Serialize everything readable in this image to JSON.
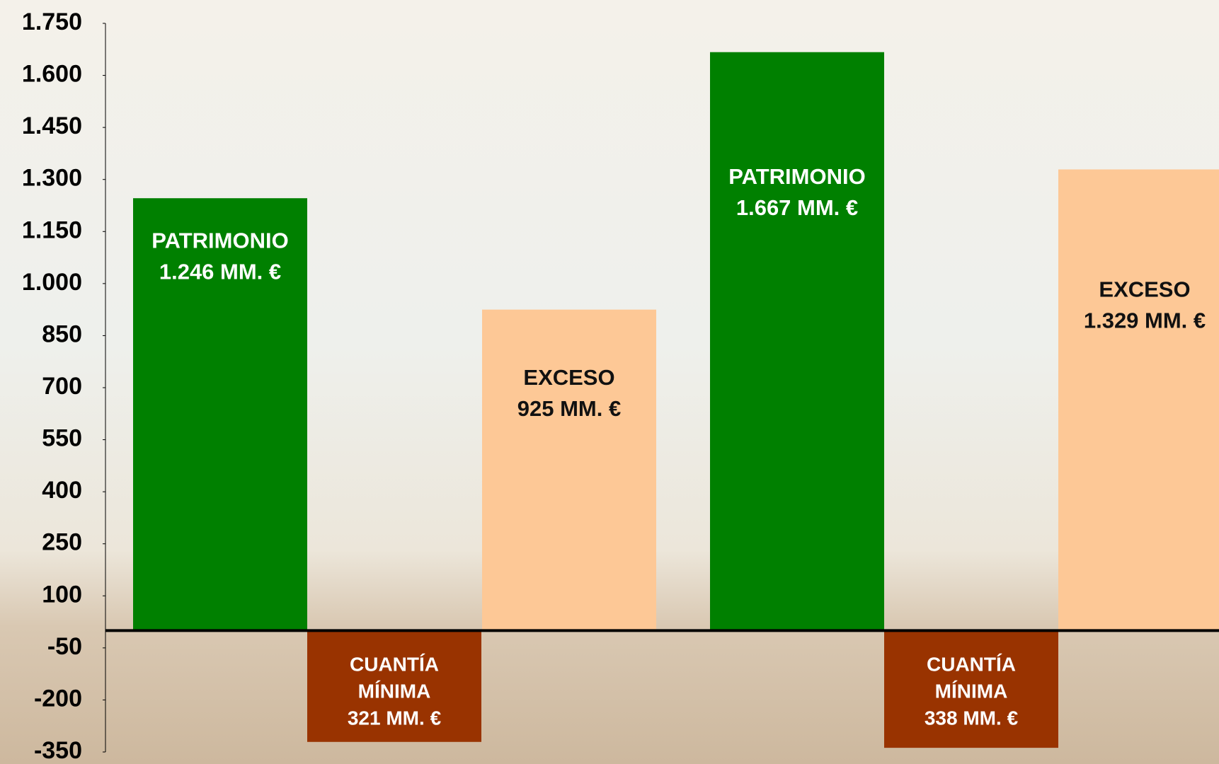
{
  "chart_data": {
    "type": "bar",
    "categories": [
      null,
      null,
      null,
      null,
      null,
      null
    ],
    "values": [
      1246,
      -321,
      925,
      1667,
      -338,
      1329
    ],
    "value_labels": [
      [
        "PATRIMONIO",
        "1.246 MM. €"
      ],
      [
        "CUANTÍA",
        "MÍNIMA",
        "321 MM. €"
      ],
      [
        "EXCESO",
        "925 MM. €"
      ],
      [
        "PATRIMONIO",
        "1.667 MM. €"
      ],
      [
        "CUANTÍA",
        "MÍNIMA",
        "338 MM. €"
      ],
      [
        "EXCESO",
        "1.329 MM. €"
      ]
    ],
    "colors": [
      "#008000",
      "#993300",
      "#fdc896",
      "#008000",
      "#993300",
      "#fdc896"
    ],
    "ylim": [
      -350,
      1750
    ],
    "yticks": [
      -350,
      -200,
      -50,
      100,
      250,
      400,
      550,
      700,
      850,
      {
        "value": 1000,
        "label": "1.000"
      },
      {
        "value": 1150,
        "label": "1.150"
      },
      {
        "value": 1300,
        "label": "1.300"
      },
      {
        "value": 1450,
        "label": "1.450"
      },
      {
        "value": 1600,
        "label": "1.600"
      },
      {
        "value": 1750,
        "label": "1.750"
      }
    ],
    "grid": false
  }
}
